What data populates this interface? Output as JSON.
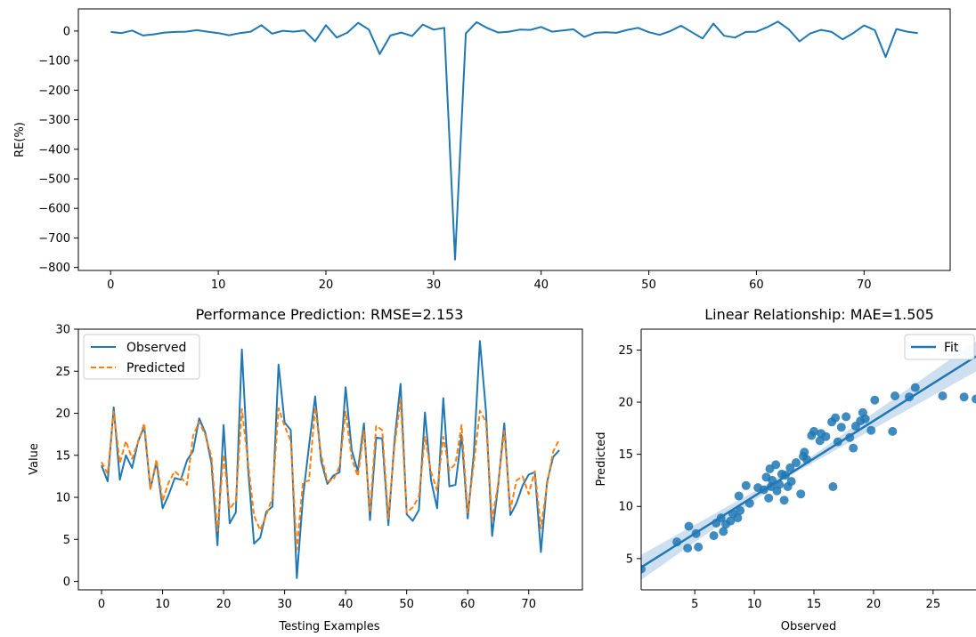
{
  "chart_data": [
    {
      "type": "line",
      "title": "",
      "xlabel": "",
      "ylabel": "RE(%)",
      "xlim": [
        -3,
        78
      ],
      "ylim": [
        -810,
        75
      ],
      "xticks": [
        0,
        10,
        20,
        30,
        40,
        50,
        60,
        70
      ],
      "yticks": [
        0,
        -100,
        -200,
        -300,
        -400,
        -500,
        -600,
        -700,
        -800
      ],
      "ytick_labels": [
        "0",
        "−100",
        "−200",
        "−300",
        "−400",
        "−500",
        "−600",
        "−700",
        "−800"
      ],
      "grid": false,
      "series": [
        {
          "color": "#1f77b4",
          "values": [
            -3,
            -7,
            2,
            -15,
            -11,
            -5,
            -3,
            -2,
            3,
            -2,
            -7,
            -14,
            -7,
            -2,
            20,
            -9,
            1,
            -2,
            2,
            -35,
            20,
            -22,
            -5,
            28,
            5,
            -78,
            -15,
            -5,
            -17,
            22,
            5,
            11,
            -773,
            -8,
            30,
            10,
            -5,
            -2,
            5,
            4,
            14,
            -2,
            2,
            6,
            -20,
            -6,
            -4,
            -6,
            4,
            11,
            -4,
            -13,
            0,
            18,
            -4,
            -25,
            25,
            -16,
            -22,
            -3,
            -2,
            13,
            32,
            6,
            -35,
            -8,
            4,
            -3,
            -28,
            -7,
            19,
            3,
            -88,
            7,
            -2,
            -7
          ]
        }
      ]
    },
    {
      "type": "line",
      "title": "Performance Prediction: RMSE=2.153",
      "xlabel": "Testing Examples",
      "ylabel": "Value",
      "xlim": [
        -3.8,
        78.8
      ],
      "ylim": [
        -1,
        30
      ],
      "xticks": [
        0,
        10,
        20,
        30,
        40,
        50,
        60,
        70
      ],
      "yticks": [
        0,
        5,
        10,
        15,
        20,
        25,
        30
      ],
      "grid": false,
      "legend": "top-left",
      "series": [
        {
          "name": "Observed",
          "color": "#1f77b4",
          "style": "solid",
          "values": [
            13.8,
            11.9,
            20.7,
            12.1,
            15.0,
            13.5,
            16.7,
            18.4,
            11.0,
            14.2,
            8.7,
            10.3,
            12.3,
            12.1,
            14.4,
            15.5,
            19.4,
            17.7,
            14.1,
            4.3,
            18.6,
            6.9,
            8.2,
            27.6,
            13.5,
            4.5,
            5.2,
            8.3,
            8.9,
            25.8,
            18.9,
            18.0,
            0.4,
            10.0,
            16.1,
            22.0,
            14.3,
            11.6,
            12.6,
            13.0,
            23.1,
            15.6,
            13.1,
            18.8,
            7.3,
            17.1,
            17.0,
            6.7,
            16.6,
            23.5,
            8.0,
            7.2,
            8.5,
            20.1,
            12.0,
            8.7,
            21.8,
            11.3,
            11.5,
            17.4,
            7.5,
            15.1,
            28.6,
            20.3,
            5.4,
            11.4,
            18.8,
            7.9,
            9.3,
            11.4,
            12.7,
            13.0,
            3.5,
            11.8,
            14.8,
            15.6
          ]
        },
        {
          "name": "Predicted",
          "color": "#ff7f0e",
          "style": "dashed",
          "values": [
            14.2,
            12.8,
            20.2,
            14.1,
            16.7,
            14.6,
            16.6,
            18.8,
            11.0,
            14.5,
            9.6,
            11.8,
            13.1,
            12.4,
            11.5,
            17.3,
            19.0,
            17.4,
            14.9,
            6.0,
            15.1,
            8.6,
            9.6,
            20.5,
            14.2,
            7.8,
            6.1,
            7.9,
            10.0,
            20.6,
            18.5,
            16.7,
            3.8,
            11.8,
            12.0,
            20.7,
            15.0,
            11.9,
            12.1,
            13.7,
            20.2,
            14.6,
            12.5,
            17.9,
            8.2,
            18.5,
            18.0,
            7.5,
            16.0,
            21.6,
            8.2,
            8.8,
            10.1,
            17.2,
            13.0,
            10.8,
            17.2,
            13.2,
            14.0,
            18.6,
            8.2,
            14.0,
            20.3,
            19.0,
            7.3,
            11.6,
            17.9,
            8.5,
            12.0,
            12.5,
            10.4,
            13.1,
            6.3,
            11.5,
            15.4,
            16.9
          ]
        }
      ]
    },
    {
      "type": "scatter",
      "title": "Linear Relationship: MAE=1.505",
      "xlabel": "Observed",
      "ylabel": "Predicted",
      "xlim": [
        0.5,
        28.6
      ],
      "ylim": [
        2,
        27
      ],
      "xticks": [
        5,
        10,
        15,
        20,
        25
      ],
      "yticks": [
        5,
        10,
        15,
        20,
        25
      ],
      "grid": false,
      "legend": "top-right",
      "fit": {
        "name": "Fit",
        "slope": 0.72,
        "intercept": 3.8,
        "color": "#1f77b4",
        "band_color": "#aecbe6"
      },
      "points": [
        [
          0.5,
          4.0
        ],
        [
          3.5,
          6.6
        ],
        [
          4.4,
          6.0
        ],
        [
          4.5,
          8.1
        ],
        [
          5.1,
          7.4
        ],
        [
          5.3,
          6.1
        ],
        [
          6.6,
          7.2
        ],
        [
          6.8,
          8.4
        ],
        [
          7.2,
          8.9
        ],
        [
          7.4,
          7.6
        ],
        [
          7.6,
          8.3
        ],
        [
          8.0,
          8.6
        ],
        [
          8.2,
          9.3
        ],
        [
          8.6,
          8.9
        ],
        [
          8.7,
          11.0
        ],
        [
          8.8,
          9.6
        ],
        [
          9.3,
          12.0
        ],
        [
          9.6,
          10.3
        ],
        [
          10.3,
          11.8
        ],
        [
          10.8,
          11.6
        ],
        [
          11.0,
          12.8
        ],
        [
          11.2,
          10.8
        ],
        [
          11.3,
          13.6
        ],
        [
          11.4,
          11.9
        ],
        [
          11.5,
          12.5
        ],
        [
          11.8,
          14.0
        ],
        [
          11.9,
          11.5
        ],
        [
          12.1,
          12.1
        ],
        [
          12.3,
          13.1
        ],
        [
          12.5,
          10.6
        ],
        [
          12.6,
          13.0
        ],
        [
          12.8,
          11.9
        ],
        [
          13.0,
          13.7
        ],
        [
          13.1,
          12.4
        ],
        [
          13.5,
          14.2
        ],
        [
          13.9,
          11.2
        ],
        [
          14.1,
          14.8
        ],
        [
          14.2,
          15.2
        ],
        [
          14.4,
          14.5
        ],
        [
          14.8,
          16.8
        ],
        [
          15.0,
          17.2
        ],
        [
          15.5,
          16.3
        ],
        [
          15.6,
          17.0
        ],
        [
          16.0,
          16.7
        ],
        [
          16.5,
          18.1
        ],
        [
          16.6,
          11.9
        ],
        [
          16.8,
          18.5
        ],
        [
          17.0,
          16.2
        ],
        [
          17.3,
          17.6
        ],
        [
          17.7,
          18.6
        ],
        [
          18.0,
          16.6
        ],
        [
          18.3,
          15.6
        ],
        [
          18.5,
          17.7
        ],
        [
          18.9,
          18.2
        ],
        [
          19.1,
          19.0
        ],
        [
          19.3,
          18.4
        ],
        [
          19.8,
          17.3
        ],
        [
          20.1,
          20.2
        ],
        [
          21.6,
          17.2
        ],
        [
          21.8,
          20.6
        ],
        [
          23.0,
          20.5
        ],
        [
          23.5,
          21.4
        ],
        [
          25.8,
          20.6
        ],
        [
          27.6,
          20.5
        ],
        [
          28.6,
          20.3
        ]
      ]
    }
  ]
}
